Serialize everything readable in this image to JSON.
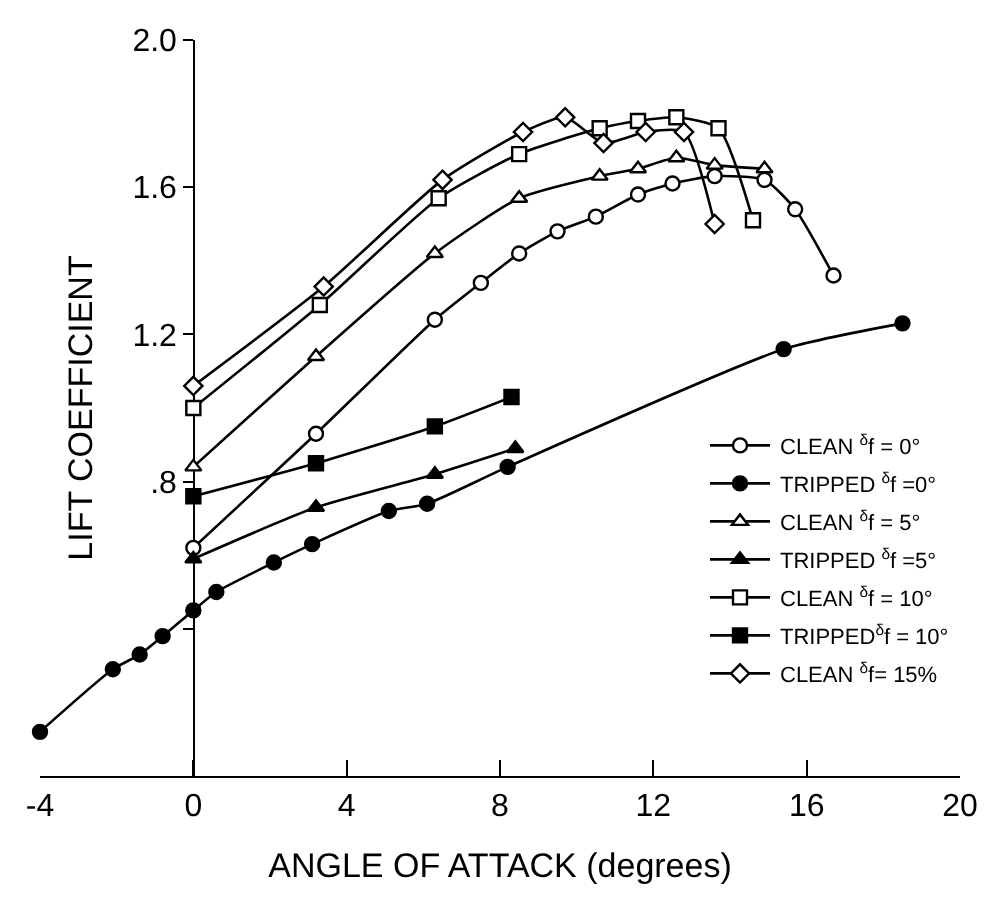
{
  "chart_data": {
    "type": "line",
    "xlabel": "ANGLE OF ATTACK (degrees)",
    "ylabel": "LIFT COEFFICIENT",
    "xlim": [
      -4,
      20
    ],
    "xticks": [
      -4,
      0,
      4,
      8,
      12,
      16,
      20
    ],
    "ylim": [
      0,
      2.0
    ],
    "yticks": [
      {
        "value": 0.4,
        "label": null
      },
      {
        "value": 0.8,
        "label": ".8"
      },
      1.2,
      1.6,
      {
        "value": 2.0,
        "label": "2.0"
      }
    ],
    "grid": false,
    "legend": "bottom right",
    "line_style": "solid",
    "series": [
      {
        "name": "CLEAN $^{δ}$f = 0°",
        "color": "#000000",
        "marker": "circle-open",
        "x": [
          0,
          3.2,
          6.3,
          7.5,
          8.5,
          9.5,
          10.5,
          11.6,
          12.5,
          13.6,
          14.9,
          15.7,
          16.7
        ],
        "values": [
          0.62,
          0.93,
          1.24,
          1.34,
          1.42,
          1.48,
          1.52,
          1.58,
          1.61,
          1.63,
          1.62,
          1.54,
          1.36
        ]
      },
      {
        "name": "TRIPPED $^{δ}$f =0°",
        "color": "#000000",
        "marker": "circle",
        "x": [
          -4,
          -2.1,
          -1.4,
          -0.8,
          0,
          0.6,
          2.1,
          3.1,
          5.1,
          6.1,
          8.2,
          15.4,
          18.5
        ],
        "values": [
          0.12,
          0.29,
          0.33,
          0.38,
          0.45,
          0.5,
          0.58,
          0.63,
          0.72,
          0.74,
          0.84,
          1.16,
          1.23
        ]
      },
      {
        "name": "CLEAN $^{δ}$f = 5°",
        "color": "#000000",
        "marker": "triangle-open",
        "x": [
          0,
          3.2,
          6.3,
          8.5,
          10.6,
          11.6,
          12.6,
          13.6,
          14.9
        ],
        "values": [
          0.84,
          1.14,
          1.42,
          1.57,
          1.63,
          1.65,
          1.68,
          1.66,
          1.65
        ]
      },
      {
        "name": "TRIPPED $^{δ}$f =5°",
        "color": "#000000",
        "marker": "triangle",
        "x": [
          0,
          3.2,
          6.3,
          8.4
        ],
        "values": [
          0.59,
          0.73,
          0.82,
          0.89
        ]
      },
      {
        "name": "CLEAN $^{δ}$f = 10°",
        "color": "#000000",
        "marker": "square-open",
        "x": [
          0,
          3.3,
          6.4,
          8.5,
          10.6,
          11.6,
          12.6,
          13.7,
          14.6
        ],
        "values": [
          1.0,
          1.28,
          1.57,
          1.69,
          1.76,
          1.78,
          1.79,
          1.76,
          1.51
        ]
      },
      {
        "name": "TRIPPED$^{δ}$f = 10°",
        "color": "#000000",
        "marker": "square",
        "x": [
          0,
          3.2,
          6.3,
          8.3
        ],
        "values": [
          0.76,
          0.85,
          0.95,
          1.03
        ]
      },
      {
        "name": "CLEAN $^{δ}$f= 15%",
        "color": "#000000",
        "marker": "diamond-open",
        "x": [
          0,
          3.4,
          6.5,
          8.6,
          9.7,
          10.7,
          11.8,
          12.8,
          13.6
        ],
        "values": [
          1.06,
          1.33,
          1.62,
          1.75,
          1.79,
          1.72,
          1.75,
          1.75,
          1.5
        ]
      }
    ]
  }
}
